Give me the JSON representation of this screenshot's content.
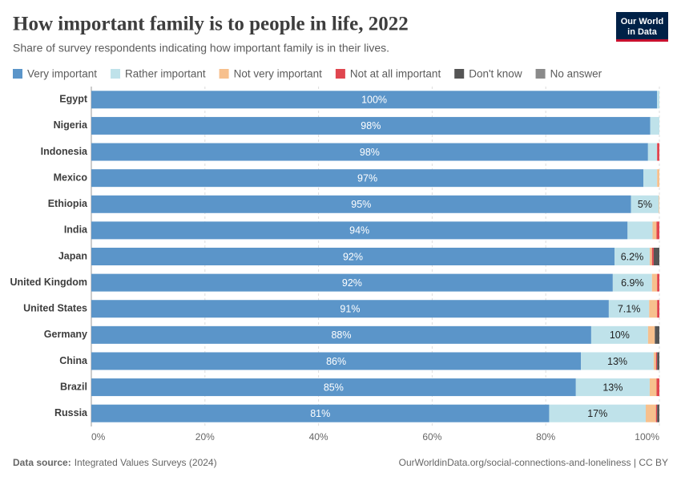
{
  "chart_data": {
    "type": "stacked_bar_horizontal",
    "title": "How important family is to people in life, 2022",
    "subtitle": "Share of survey respondents indicating how important family is in their lives.",
    "logo": [
      "Our World",
      "in Data"
    ],
    "source_label": "Data source:",
    "source": "Integrated Values Surveys (2024)",
    "url": "OurWorldinData.org/social-connections-and-loneliness | CC BY",
    "categories": [
      "Egypt",
      "Nigeria",
      "Indonesia",
      "Mexico",
      "Ethiopia",
      "India",
      "Japan",
      "United Kingdom",
      "United States",
      "Germany",
      "China",
      "Brazil",
      "Russia"
    ],
    "series": [
      {
        "name": "Very important",
        "color": "#5b95c9",
        "values": [
          99.6,
          98.4,
          98.0,
          97.2,
          95.0,
          94.4,
          92.1,
          91.8,
          91.1,
          88.0,
          86.2,
          85.3,
          80.6
        ],
        "value_labels": [
          "100%",
          "98%",
          "98%",
          "97%",
          "95%",
          "94%",
          "92%",
          "92%",
          "91%",
          "88%",
          "86%",
          "85%",
          "81%"
        ]
      },
      {
        "name": "Rather important",
        "color": "#bfe2ea",
        "values": [
          0.4,
          1.6,
          1.6,
          2.4,
          4.9,
          4.4,
          6.2,
          6.9,
          7.1,
          10.0,
          12.8,
          13.0,
          17.0
        ],
        "value_labels": [
          null,
          null,
          null,
          null,
          "5%",
          null,
          "6.2%",
          "6.9%",
          "7.1%",
          "10%",
          "13%",
          "13%",
          "17%"
        ]
      },
      {
        "name": "Not very important",
        "color": "#f7c08d",
        "values": [
          0,
          0,
          0,
          0.4,
          0.1,
          0.7,
          0.4,
          0.9,
          1.4,
          1.2,
          0.4,
          1.2,
          1.8
        ]
      },
      {
        "name": "Not at all important",
        "color": "#e0464f",
        "values": [
          0,
          0,
          0.4,
          0,
          0,
          0.5,
          0.3,
          0.4,
          0.4,
          0,
          0.2,
          0.5,
          0.2
        ]
      },
      {
        "name": "Don't know",
        "color": "#555555",
        "values": [
          0,
          0,
          0,
          0,
          0,
          0,
          1.0,
          0,
          0,
          0.8,
          0.4,
          0,
          0.4
        ]
      },
      {
        "name": "No answer",
        "color": "#8a8a8a",
        "values": [
          0,
          0,
          0,
          0,
          0,
          0,
          0,
          0,
          0,
          0,
          0,
          0,
          0
        ]
      }
    ],
    "xlim": [
      0,
      100
    ],
    "xticks": [
      {
        "value": 0,
        "label": "0%"
      },
      {
        "value": 20,
        "label": "20%"
      },
      {
        "value": 40,
        "label": "40%"
      },
      {
        "value": 60,
        "label": "60%"
      },
      {
        "value": 80,
        "label": "80%"
      },
      {
        "value": 100,
        "label": "100%"
      }
    ],
    "grid": true
  }
}
